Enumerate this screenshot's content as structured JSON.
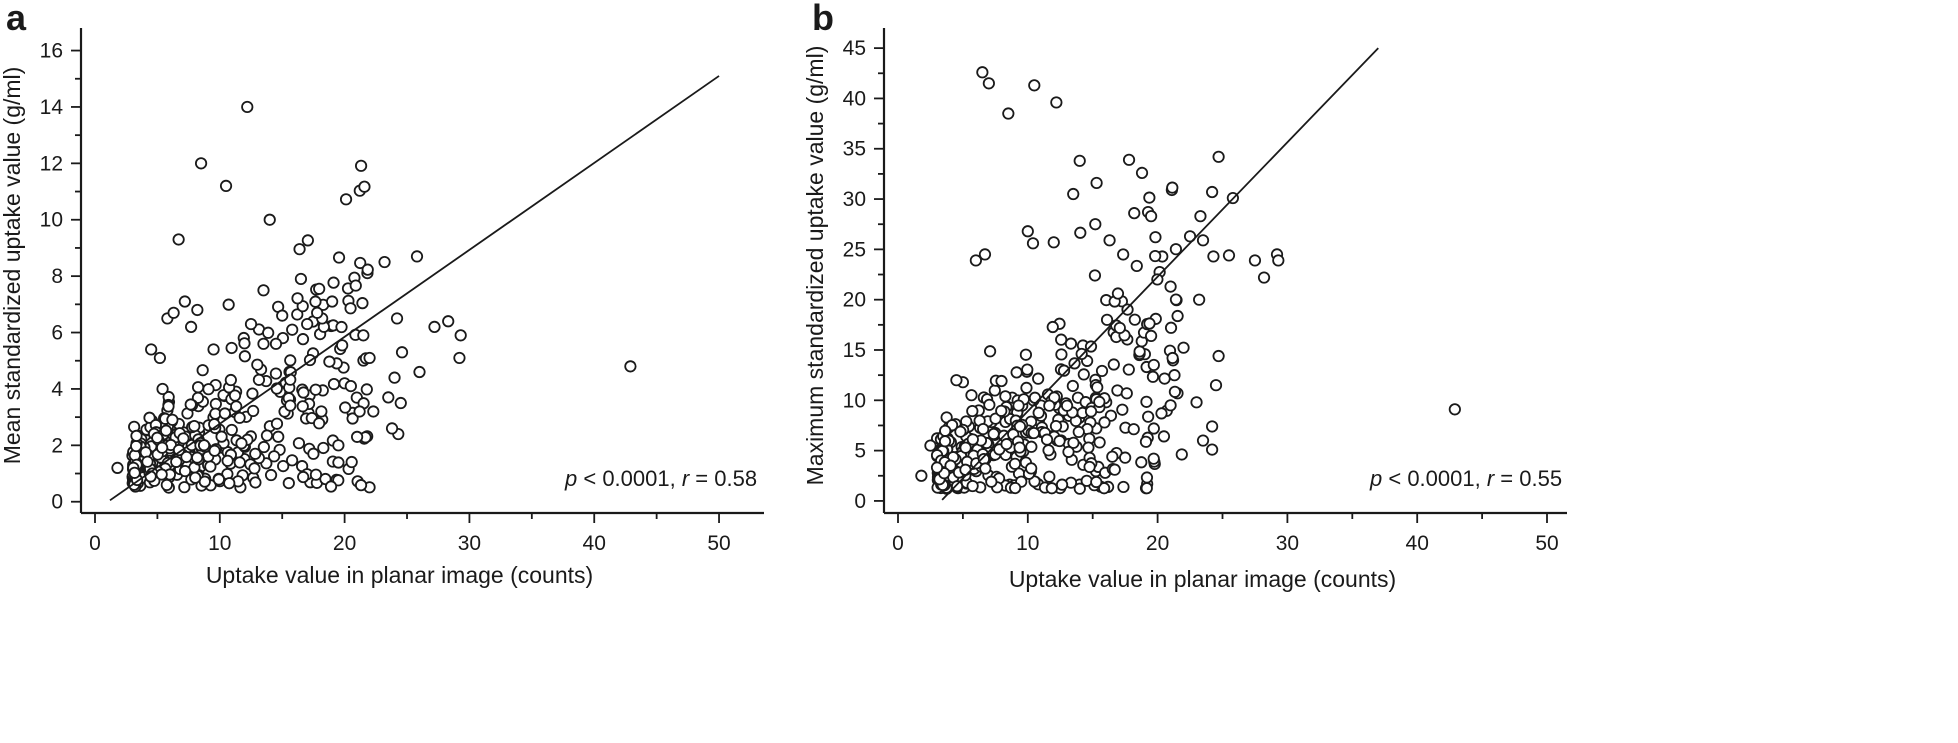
{
  "chart_data": [
    {
      "type": "scatter",
      "panel_label": "a",
      "xlabel": "Uptake value in planar image (counts)",
      "ylabel": "Mean standardized uptake value (g/ml)",
      "xlim": [
        0,
        52
      ],
      "ylim": [
        -0.4,
        16.8
      ],
      "xticks": [
        0,
        10,
        20,
        30,
        40,
        50
      ],
      "yticks": [
        0,
        2,
        4,
        6,
        8,
        10,
        12,
        14,
        16
      ],
      "annotation": {
        "p_label": "p",
        "p_text": " < 0.0001, ",
        "r_label": "r",
        "r_text": " = 0.58"
      },
      "fit_line": {
        "x": [
          1.2,
          50
        ],
        "y": [
          0.05,
          15.1
        ]
      },
      "outliers": [
        [
          1.8,
          1.2
        ],
        [
          4.5,
          5.4
        ],
        [
          5.2,
          5.1
        ],
        [
          5.8,
          6.5
        ],
        [
          6.3,
          6.7
        ],
        [
          6.7,
          9.3
        ],
        [
          7.2,
          7.1
        ],
        [
          7.7,
          6.2
        ],
        [
          8.2,
          6.8
        ],
        [
          8.5,
          12.0
        ],
        [
          9.5,
          5.4
        ],
        [
          10.5,
          11.2
        ],
        [
          12.2,
          14.0
        ],
        [
          14.0,
          10.0
        ],
        [
          16.5,
          7.9
        ],
        [
          19.0,
          7.1
        ],
        [
          23.2,
          8.5
        ],
        [
          25.8,
          8.7
        ],
        [
          42.9,
          4.8
        ],
        [
          24.2,
          6.5
        ],
        [
          27.2,
          6.2
        ],
        [
          28.3,
          6.4
        ],
        [
          29.3,
          5.9
        ],
        [
          29.2,
          5.1
        ],
        [
          26.0,
          4.6
        ],
        [
          24.6,
          5.3
        ],
        [
          23.5,
          3.7
        ],
        [
          24.0,
          4.4
        ],
        [
          24.5,
          3.5
        ],
        [
          24.3,
          2.4
        ],
        [
          23.8,
          2.6
        ],
        [
          22.3,
          3.2
        ],
        [
          21.2,
          3.2
        ],
        [
          21.0,
          2.3
        ],
        [
          19.5,
          2.0
        ],
        [
          17.5,
          1.7
        ],
        [
          22.0,
          5.1
        ],
        [
          21.5,
          5.9
        ],
        [
          20.0,
          4.2
        ],
        [
          20.5,
          4.1
        ],
        [
          18.2,
          6.5
        ],
        [
          17.8,
          6.7
        ],
        [
          17.0,
          6.3
        ],
        [
          15.8,
          6.1
        ],
        [
          15.0,
          6.6
        ],
        [
          14.5,
          5.6
        ],
        [
          13.5,
          5.6
        ],
        [
          12.5,
          6.3
        ]
      ],
      "cluster": {
        "seed": 12345,
        "count": 380,
        "x_range": [
          3,
          22
        ],
        "y_min": 0.5,
        "spread_at_low_x": 0.6,
        "spread_growth": 0.12,
        "slope": 0.17,
        "intercept": 0.9
      }
    },
    {
      "type": "scatter",
      "panel_label": "b",
      "xlabel": "Uptake value in planar image (counts)",
      "ylabel": "Maximum standardized uptake value (g/ml)",
      "xlim": [
        0,
        50
      ],
      "ylim": [
        -1.2,
        47
      ],
      "xticks": [
        0,
        10,
        20,
        30,
        40,
        50
      ],
      "yticks": [
        0,
        5,
        10,
        15,
        20,
        25,
        30,
        35,
        40,
        45
      ],
      "annotation": {
        "p_label": "p",
        "p_text": " < 0.0001, ",
        "r_label": "r",
        "r_text": " = 0.55"
      },
      "fit_line": {
        "x": [
          3.4,
          37
        ],
        "y": [
          0.1,
          45
        ]
      },
      "outliers": [
        [
          1.8,
          2.5
        ],
        [
          2.5,
          5.5
        ],
        [
          6.5,
          42.6
        ],
        [
          6.7,
          24.5
        ],
        [
          7.0,
          41.5
        ],
        [
          8.5,
          38.5
        ],
        [
          10.5,
          41.3
        ],
        [
          12.2,
          39.6
        ],
        [
          14.0,
          33.8
        ],
        [
          17.8,
          33.9
        ],
        [
          18.8,
          32.6
        ],
        [
          13.5,
          30.5
        ],
        [
          15.3,
          31.6
        ],
        [
          18.2,
          28.6
        ],
        [
          19.5,
          28.3
        ],
        [
          23.3,
          28.3
        ],
        [
          24.2,
          30.7
        ],
        [
          24.7,
          34.2
        ],
        [
          25.8,
          30.1
        ],
        [
          22.5,
          26.3
        ],
        [
          23.5,
          25.9
        ],
        [
          24.3,
          24.3
        ],
        [
          25.5,
          24.4
        ],
        [
          27.5,
          23.9
        ],
        [
          28.2,
          22.2
        ],
        [
          29.2,
          24.5
        ],
        [
          29.3,
          23.9
        ],
        [
          23.2,
          20.0
        ],
        [
          21.0,
          21.3
        ],
        [
          19.5,
          16.4
        ],
        [
          21.3,
          12.5
        ],
        [
          24.7,
          14.4
        ],
        [
          24.5,
          11.5
        ],
        [
          24.2,
          7.4
        ],
        [
          24.2,
          5.1
        ],
        [
          23.5,
          6.0
        ],
        [
          23.0,
          9.8
        ],
        [
          21.0,
          9.5
        ],
        [
          20.3,
          8.7
        ],
        [
          19.7,
          4.2
        ],
        [
          17.5,
          4.3
        ],
        [
          42.9,
          9.1
        ],
        [
          6.0,
          23.9
        ],
        [
          5.0,
          11.8
        ],
        [
          4.5,
          12.0
        ],
        [
          12.0,
          25.7
        ],
        [
          16.3,
          25.9
        ],
        [
          15.2,
          27.5
        ],
        [
          10.0,
          26.8
        ],
        [
          10.4,
          25.6
        ]
      ],
      "cluster": {
        "seed": 67890,
        "count": 400,
        "x_range": [
          3,
          22
        ],
        "y_min": 1.2,
        "spread_at_low_x": 1.5,
        "spread_growth": 0.38,
        "slope": 0.55,
        "intercept": 1.5
      }
    }
  ]
}
